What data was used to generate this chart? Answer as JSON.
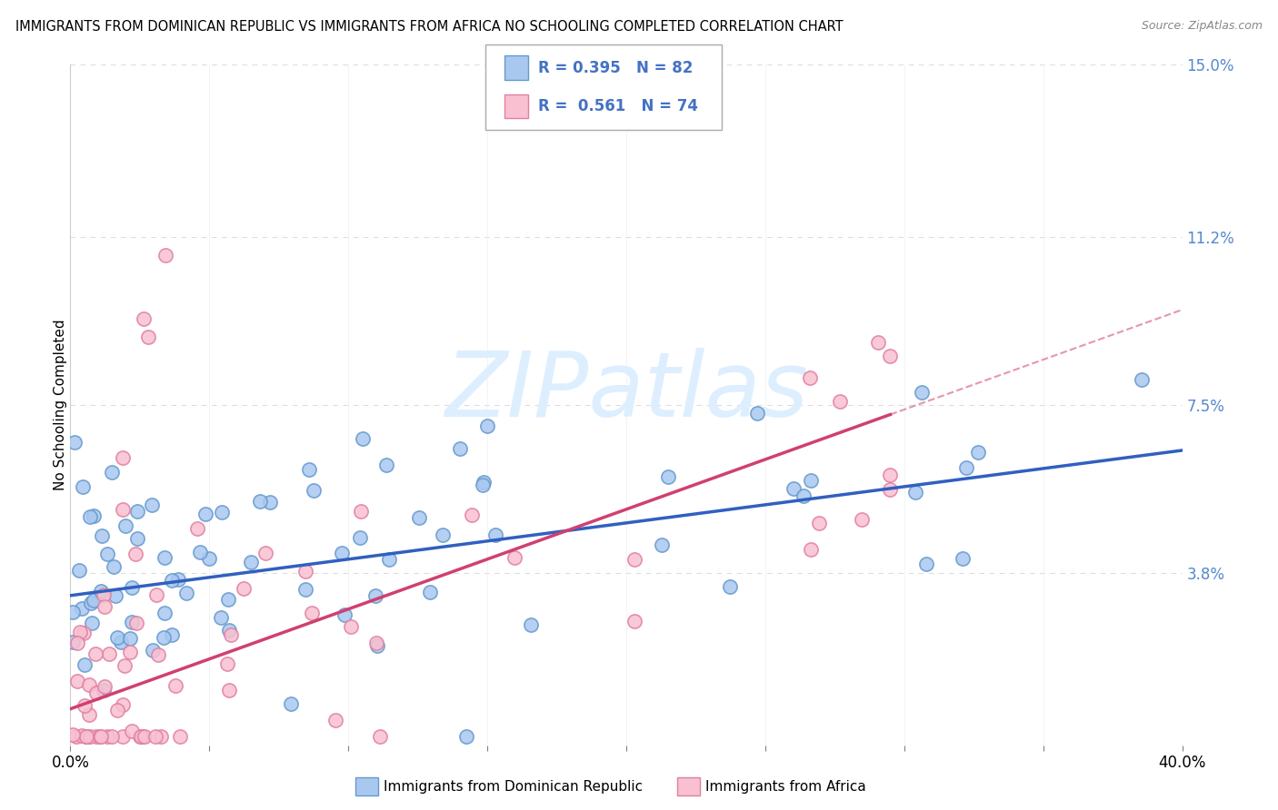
{
  "title": "IMMIGRANTS FROM DOMINICAN REPUBLIC VS IMMIGRANTS FROM AFRICA NO SCHOOLING COMPLETED CORRELATION CHART",
  "source": "Source: ZipAtlas.com",
  "ylabel": "No Schooling Completed",
  "xlim": [
    0.0,
    0.4
  ],
  "ylim": [
    0.0,
    0.15
  ],
  "yticks": [
    0.038,
    0.075,
    0.112,
    0.15
  ],
  "ytick_labels": [
    "3.8%",
    "7.5%",
    "11.2%",
    "15.0%"
  ],
  "xtick_positions": [
    0.0,
    0.05,
    0.1,
    0.15,
    0.2,
    0.25,
    0.3,
    0.35,
    0.4
  ],
  "series1_label": "Immigrants from Dominican Republic",
  "series1_color": "#A8C8F0",
  "series1_edge": "#6699CC",
  "series1_R": "0.395",
  "series1_N": "82",
  "series2_label": "Immigrants from Africa",
  "series2_color": "#F8C0D0",
  "series2_edge": "#E080A0",
  "series2_R": "0.561",
  "series2_N": "74",
  "trend1_color": "#3060C0",
  "trend2_color": "#D04070",
  "trend1_intercept": 0.033,
  "trend1_slope": 0.08,
  "trend2_intercept": 0.008,
  "trend2_slope": 0.22,
  "background_color": "#FFFFFF",
  "grid_color": "#DDDDDD",
  "title_fontsize": 10.5,
  "axis_label_color": "#5588CC",
  "legend_R_color": "#4472C4",
  "watermark_text": "ZIPatlas",
  "watermark_color": "#DDEEFF",
  "watermark_fontsize": 72
}
